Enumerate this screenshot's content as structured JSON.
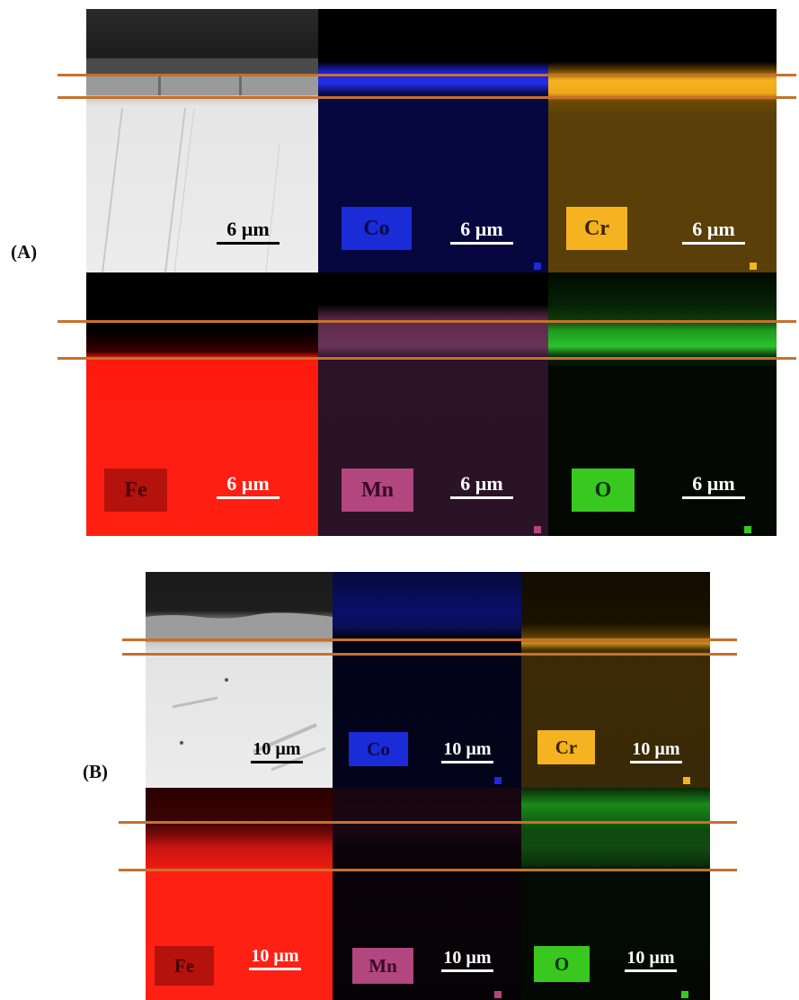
{
  "panels": {
    "A": {
      "label": "(A)",
      "scale": "6 µm",
      "elements": [
        "Co",
        "Cr",
        "Fe",
        "Mn",
        "O"
      ]
    },
    "B": {
      "label": "(B)",
      "scale": "10 µm",
      "elements": [
        "Co",
        "Cr",
        "Fe",
        "Mn",
        "O"
      ]
    }
  },
  "colors": {
    "Co": "#1a2bd8",
    "Cr": "#f5b221",
    "Fe": "#b4120c",
    "Mn": "#b2467e",
    "O": "#38c820",
    "guide_line": "#c8702a"
  }
}
